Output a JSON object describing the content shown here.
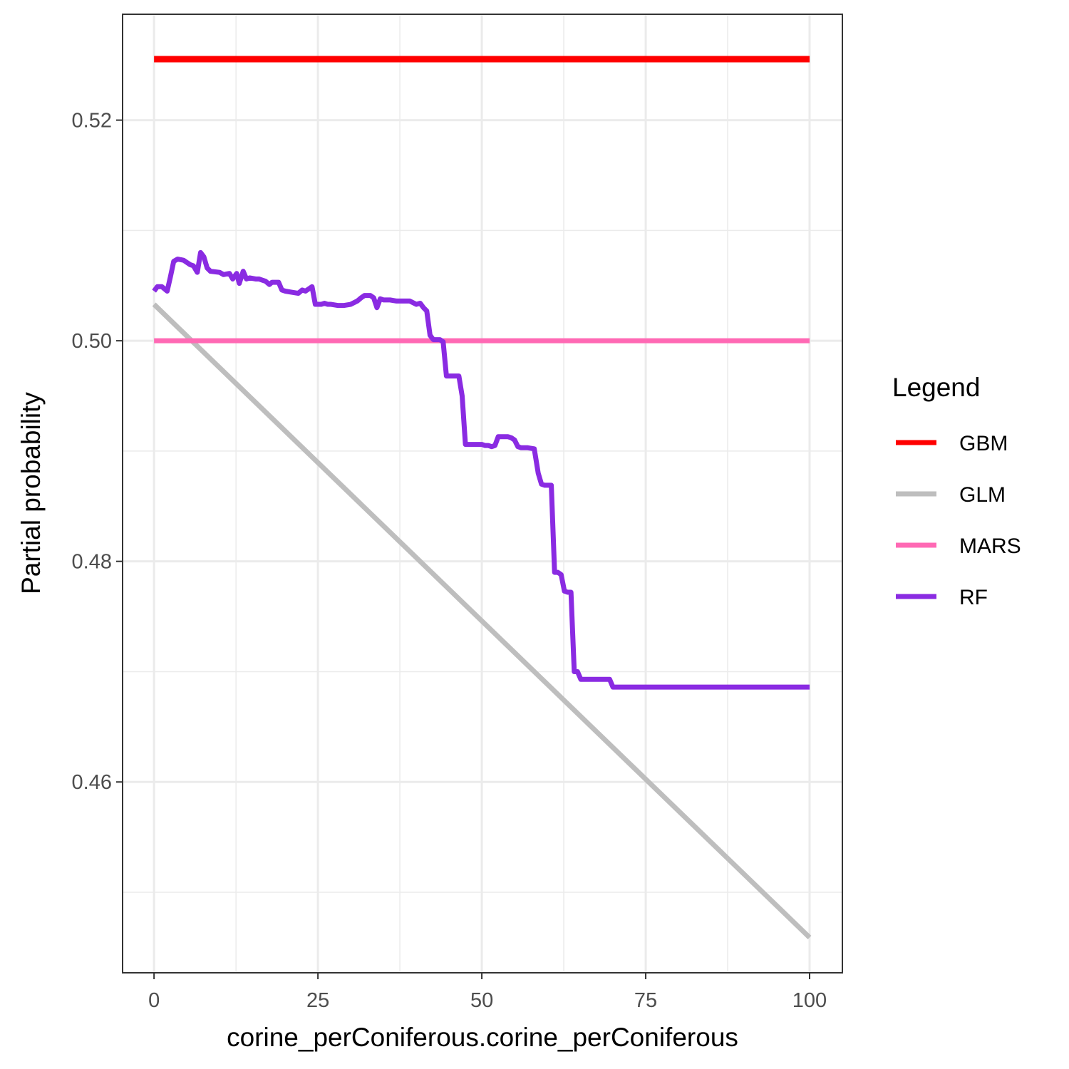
{
  "chart_data": {
    "type": "line",
    "xlabel": "corine_perConiferous.corine_perConiferous",
    "ylabel": "Partial probability",
    "xlim": [
      -4.8,
      105
    ],
    "ylim": [
      0.4427,
      0.5296
    ],
    "x_ticks": [
      0,
      25,
      50,
      75,
      100
    ],
    "x_tick_labels": [
      "0",
      "25",
      "50",
      "75",
      "100"
    ],
    "y_ticks": [
      0.46,
      0.48,
      0.5,
      0.52
    ],
    "y_tick_labels": [
      "0.46",
      "0.48",
      "0.50",
      "0.52"
    ],
    "x_minor": [
      12.5,
      37.5,
      62.5,
      87.5
    ],
    "y_minor": [
      0.45,
      0.47,
      0.49,
      0.51
    ],
    "grid": true,
    "legend": {
      "title": "Legend",
      "position": "right",
      "entries": [
        "GBM",
        "GLM",
        "MARS",
        "RF"
      ]
    },
    "series": [
      {
        "name": "GBM",
        "color": "#ff0000",
        "x": [
          0,
          100
        ],
        "y": [
          0.52553,
          0.52553
        ]
      },
      {
        "name": "GLM",
        "color": "#bebebe",
        "x": [
          0,
          100
        ],
        "y": [
          0.5033,
          0.4459
        ]
      },
      {
        "name": "MARS",
        "color": "#ff69b4",
        "x": [
          0,
          100
        ],
        "y": [
          0.5,
          0.5
        ]
      },
      {
        "name": "RF",
        "color": "#8a2be2",
        "x": [
          0,
          0.5,
          1.2,
          2.0,
          2.5,
          3.0,
          3.6,
          4.5,
          5.0,
          5.5,
          6.0,
          6.6,
          7.1,
          7.6,
          8.1,
          8.6,
          10.0,
          10.6,
          11.5,
          12.0,
          12.6,
          13.0,
          13.6,
          14.1,
          14.6,
          15.5,
          16.0,
          16.5,
          17.0,
          17.6,
          18.0,
          19.0,
          19.5,
          20.0,
          21.0,
          22.0,
          22.6,
          23.1,
          23.6,
          24.1,
          24.6,
          25.5,
          26.0,
          26.5,
          27.0,
          28.0,
          29.0,
          30.0,
          31.0,
          31.6,
          32.1,
          33.0,
          33.5,
          34.0,
          34.5,
          35.0,
          36.0,
          37.0,
          38.0,
          39.0,
          40.0,
          40.6,
          41.1,
          41.6,
          42.1,
          42.6,
          43.1,
          43.6,
          44.1,
          44.6,
          45.5,
          46.5,
          47.0,
          47.5,
          48.0,
          49.0,
          50.0,
          50.5,
          51.0,
          51.5,
          52.0,
          52.5,
          53.5,
          54.0,
          54.5,
          55.0,
          55.5,
          56.0,
          56.5,
          57.0,
          58.0,
          58.6,
          59.1,
          59.6,
          60.1,
          60.6,
          61.1,
          61.6,
          62.1,
          62.6,
          63.1,
          63.6,
          64.1,
          64.6,
          65.1,
          65.6,
          66.5,
          67.5,
          68.5,
          69.5,
          70.0,
          71.0,
          80.0,
          90.0,
          100.0
        ],
        "y": [
          0.5045,
          0.5049,
          0.5049,
          0.5045,
          0.5058,
          0.5072,
          0.5074,
          0.5073,
          0.5071,
          0.5069,
          0.5068,
          0.5062,
          0.508,
          0.5076,
          0.5066,
          0.5063,
          0.5062,
          0.506,
          0.5061,
          0.5056,
          0.5061,
          0.5052,
          0.5063,
          0.5056,
          0.5057,
          0.5056,
          0.5056,
          0.5055,
          0.5054,
          0.5051,
          0.5053,
          0.5053,
          0.5046,
          0.5045,
          0.5044,
          0.5043,
          0.5046,
          0.5045,
          0.5047,
          0.5049,
          0.5033,
          0.5033,
          0.5034,
          0.5033,
          0.5033,
          0.5032,
          0.5032,
          0.5033,
          0.5036,
          0.5039,
          0.5041,
          0.5041,
          0.5039,
          0.503,
          0.5038,
          0.5037,
          0.5037,
          0.5036,
          0.5036,
          0.5036,
          0.5033,
          0.5034,
          0.503,
          0.5027,
          0.5005,
          0.5001,
          0.5001,
          0.5001,
          0.4999,
          0.4968,
          0.4968,
          0.4968,
          0.495,
          0.4906,
          0.4906,
          0.4906,
          0.4906,
          0.4905,
          0.4905,
          0.4904,
          0.4905,
          0.4913,
          0.4913,
          0.4913,
          0.4912,
          0.491,
          0.4904,
          0.4903,
          0.4903,
          0.4903,
          0.4902,
          0.488,
          0.487,
          0.4869,
          0.4869,
          0.4869,
          0.479,
          0.479,
          0.4788,
          0.4773,
          0.4772,
          0.4772,
          0.47,
          0.47,
          0.4693,
          0.4693,
          0.4693,
          0.4693,
          0.4693,
          0.4693,
          0.4686,
          0.4686,
          0.4686,
          0.4686,
          0.4686
        ]
      }
    ]
  }
}
